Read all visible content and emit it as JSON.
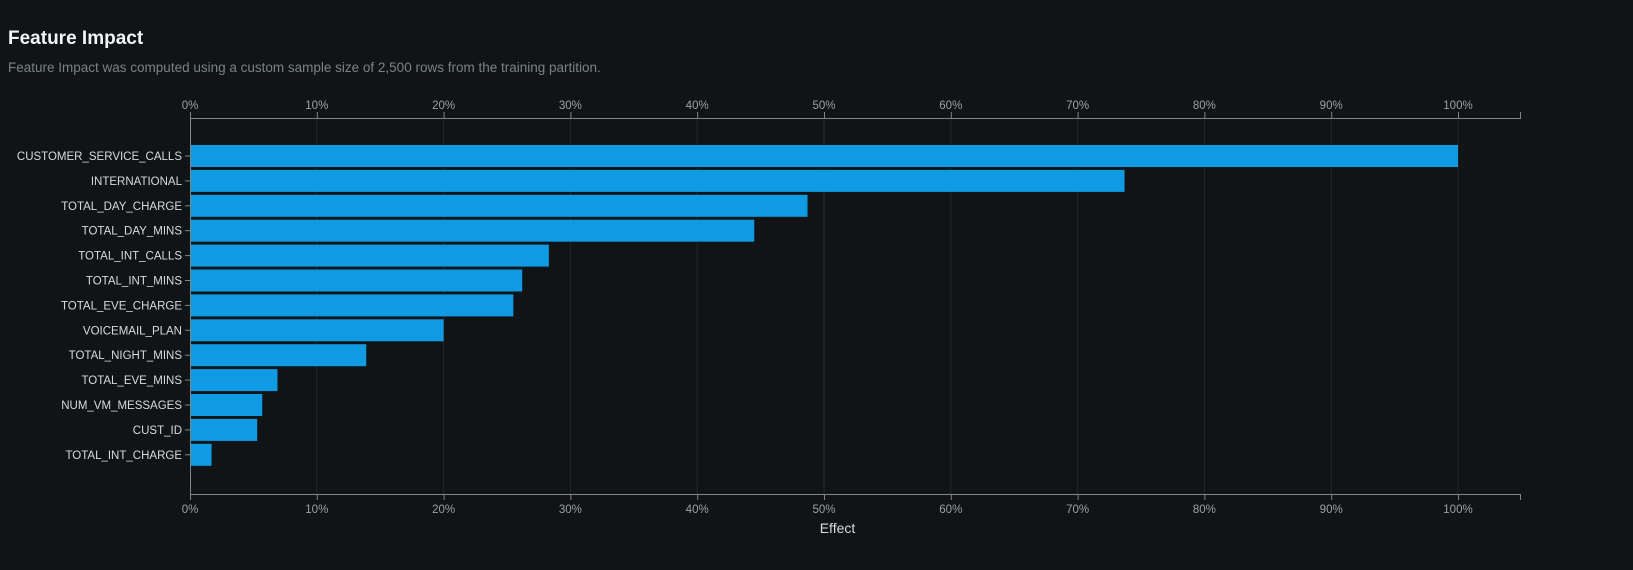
{
  "header": {
    "title": "Feature Impact",
    "subtitle": "Feature Impact was computed using a custom sample size of 2,500 rows from the training partition."
  },
  "colors": {
    "bar": "#0e9be3",
    "axis": "#7f868a",
    "grid": "#22282b",
    "background": "#101416"
  },
  "chart_data": {
    "type": "bar",
    "orientation": "horizontal",
    "xlabel": "Effect",
    "xlim": [
      0,
      105
    ],
    "ticks": [
      0,
      10,
      20,
      30,
      40,
      50,
      60,
      70,
      80,
      90,
      100
    ],
    "tick_labels": [
      "0%",
      "10%",
      "20%",
      "30%",
      "40%",
      "50%",
      "60%",
      "70%",
      "80%",
      "90%",
      "100%"
    ],
    "grid": true,
    "categories": [
      "CUSTOMER_SERVICE_CALLS",
      "INTERNATIONAL",
      "TOTAL_DAY_CHARGE",
      "TOTAL_DAY_MINS",
      "TOTAL_INT_CALLS",
      "TOTAL_INT_MINS",
      "TOTAL_EVE_CHARGE",
      "VOICEMAIL_PLAN",
      "TOTAL_NIGHT_MINS",
      "TOTAL_EVE_MINS",
      "NUM_VM_MESSAGES",
      "CUST_ID",
      "TOTAL_INT_CHARGE"
    ],
    "values": [
      100,
      73.7,
      48.7,
      44.5,
      28.3,
      26.2,
      25.5,
      20.0,
      13.9,
      6.9,
      5.7,
      5.3,
      1.7
    ]
  }
}
